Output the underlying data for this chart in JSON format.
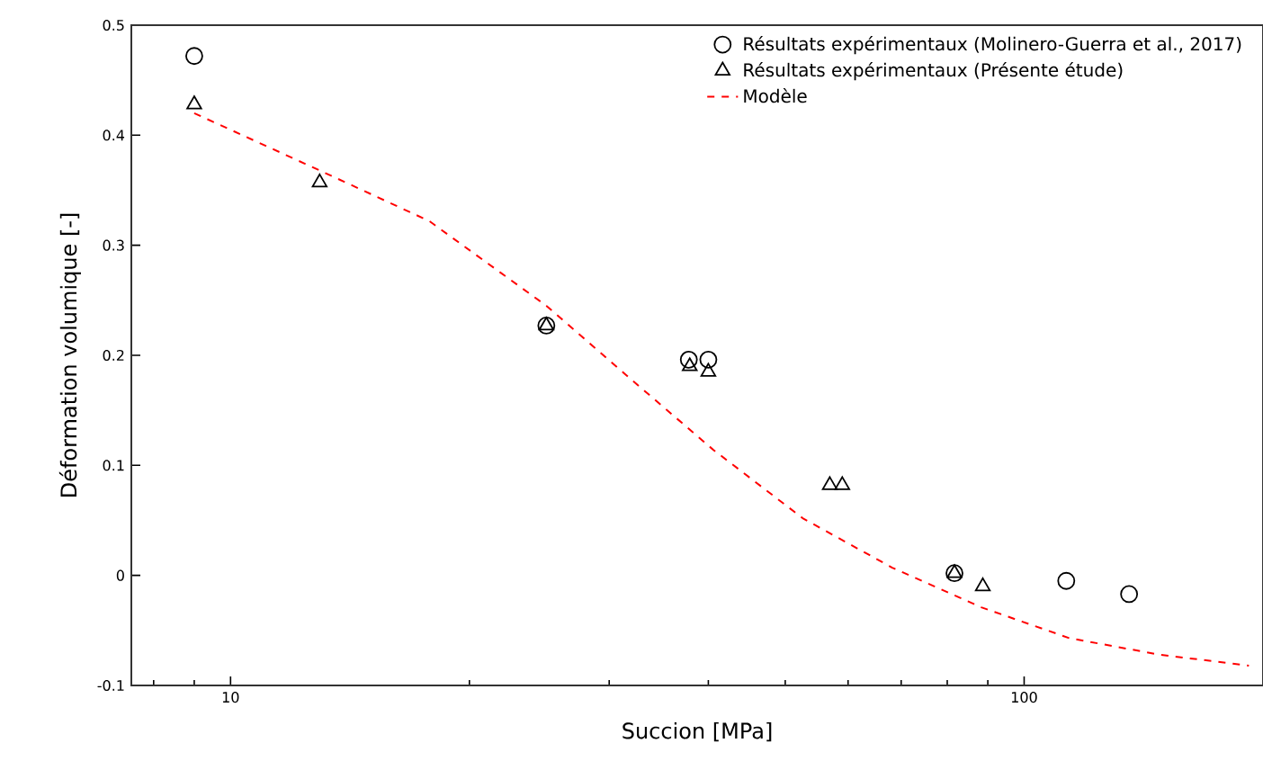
{
  "chart_data": {
    "type": "scatter",
    "xlabel": "Succion [MPa]",
    "ylabel": "Déformation volumique [-]",
    "log": "x",
    "grid": false,
    "legend": "top right",
    "xlim": [
      7.5,
      200
    ],
    "ylim": [
      -0.1,
      0.5
    ],
    "xticks": [
      {
        "value": 8,
        "label": null
      },
      {
        "value": 9,
        "label": null
      },
      10,
      {
        "value": 20,
        "label": null
      },
      {
        "value": 30,
        "label": null
      },
      {
        "value": 40,
        "label": null
      },
      {
        "value": 50,
        "label": null
      },
      {
        "value": 60,
        "label": null
      },
      {
        "value": 70,
        "label": null
      },
      {
        "value": 80,
        "label": null
      },
      {
        "value": 90,
        "label": null
      },
      100
    ],
    "yticks": [
      -0.1,
      0,
      0.1,
      0.2,
      0.3,
      0.4,
      0.5
    ],
    "series": [
      {
        "name": "Résultats expérimentaux (Molinero-Guerra et al., 2017)",
        "marker": "circle",
        "color": "#000000",
        "x": [
          9.0,
          25.0,
          37.8,
          40.0,
          81.7,
          113,
          135.6
        ],
        "values": [
          0.472,
          0.227,
          0.196,
          0.196,
          0.002,
          -0.005,
          -0.017
        ]
      },
      {
        "name": "Résultats expérimentaux (Présente étude)",
        "marker": "triangle",
        "color": "#000000",
        "x": [
          9.0,
          12.95,
          25.0,
          37.9,
          40.0,
          56.9,
          59.0,
          81.7,
          88.7
        ],
        "values": [
          0.428,
          0.357,
          0.227,
          0.19,
          0.185,
          0.082,
          0.082,
          0.002,
          -0.01
        ]
      },
      {
        "name": "Modèle",
        "type": "line",
        "line_style": "dashed",
        "marker": "none",
        "color": "#ff0000",
        "x": [
          9.0,
          12.95,
          17.8,
          25.0,
          31.4,
          40.6,
          52.6,
          68.2,
          88.3,
          114,
          148,
          192
        ],
        "values": [
          0.42,
          0.368,
          0.322,
          0.245,
          0.183,
          0.114,
          0.052,
          0.007,
          -0.029,
          -0.057,
          -0.072,
          -0.082
        ]
      }
    ]
  }
}
